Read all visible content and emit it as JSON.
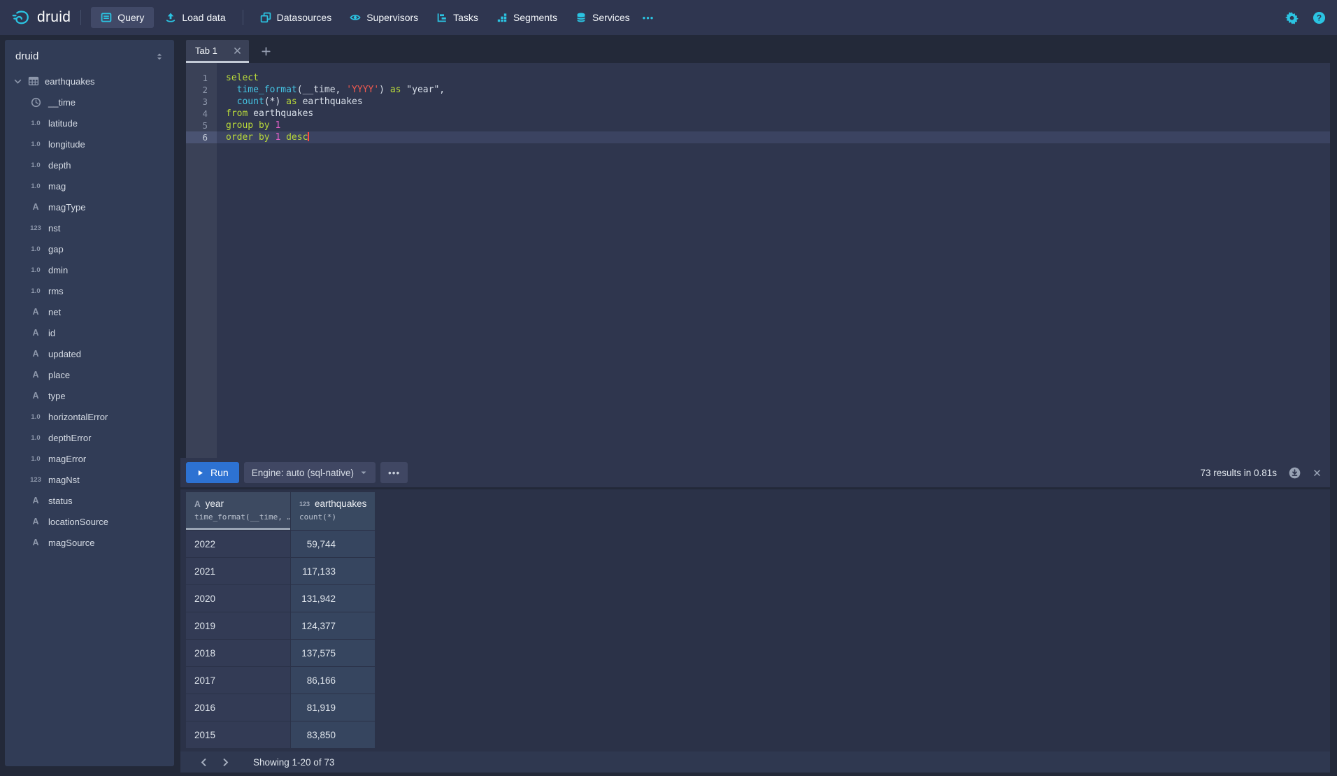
{
  "colors": {
    "accent_cyan": "#2bc4e2",
    "run_blue": "#2d72d2",
    "keyword": "#b9d93a",
    "function": "#45c5e4",
    "string": "#f0594f",
    "number": "#e561c9"
  },
  "navbar": {
    "logo_text": "druid",
    "items": [
      {
        "label": "Query",
        "icon": "query-icon",
        "active": true,
        "group": 1
      },
      {
        "label": "Load data",
        "icon": "upload-icon",
        "active": false,
        "group": 1
      },
      {
        "label": "Datasources",
        "icon": "datasources-icon",
        "active": false,
        "group": 2
      },
      {
        "label": "Supervisors",
        "icon": "supervisors-icon",
        "active": false,
        "group": 2
      },
      {
        "label": "Tasks",
        "icon": "tasks-icon",
        "active": false,
        "group": 2
      },
      {
        "label": "Segments",
        "icon": "segments-icon",
        "active": false,
        "group": 2
      },
      {
        "label": "Services",
        "icon": "services-icon",
        "active": false,
        "group": 2
      }
    ],
    "more_label": "•••"
  },
  "sidebar": {
    "schema": "druid",
    "table_name": "earthquakes",
    "columns": [
      {
        "name": "__time",
        "type": "time"
      },
      {
        "name": "latitude",
        "type": "float"
      },
      {
        "name": "longitude",
        "type": "float"
      },
      {
        "name": "depth",
        "type": "float"
      },
      {
        "name": "mag",
        "type": "float"
      },
      {
        "name": "magType",
        "type": "str"
      },
      {
        "name": "nst",
        "type": "int"
      },
      {
        "name": "gap",
        "type": "float"
      },
      {
        "name": "dmin",
        "type": "float"
      },
      {
        "name": "rms",
        "type": "float"
      },
      {
        "name": "net",
        "type": "str"
      },
      {
        "name": "id",
        "type": "str"
      },
      {
        "name": "updated",
        "type": "str"
      },
      {
        "name": "place",
        "type": "str"
      },
      {
        "name": "type",
        "type": "str"
      },
      {
        "name": "horizontalError",
        "type": "float"
      },
      {
        "name": "depthError",
        "type": "float"
      },
      {
        "name": "magError",
        "type": "float"
      },
      {
        "name": "magNst",
        "type": "int"
      },
      {
        "name": "status",
        "type": "str"
      },
      {
        "name": "locationSource",
        "type": "str"
      },
      {
        "name": "magSource",
        "type": "str"
      }
    ],
    "type_badges": {
      "float": "1.0",
      "str": "A",
      "int": "123"
    }
  },
  "editor": {
    "tab_label": "Tab 1",
    "active_line": 6,
    "code_lines": [
      [
        {
          "t": "kw",
          "v": "select"
        }
      ],
      [
        {
          "t": "pl",
          "v": "  "
        },
        {
          "t": "fn",
          "v": "time_format"
        },
        {
          "t": "pl",
          "v": "(__time, "
        },
        {
          "t": "str",
          "v": "'YYYY'"
        },
        {
          "t": "pl",
          "v": ") "
        },
        {
          "t": "kw",
          "v": "as"
        },
        {
          "t": "pl",
          "v": " \"year\","
        }
      ],
      [
        {
          "t": "pl",
          "v": "  "
        },
        {
          "t": "fn",
          "v": "count"
        },
        {
          "t": "pl",
          "v": "(*) "
        },
        {
          "t": "kw",
          "v": "as"
        },
        {
          "t": "pl",
          "v": " earthquakes"
        }
      ],
      [
        {
          "t": "kw",
          "v": "from"
        },
        {
          "t": "pl",
          "v": " earthquakes"
        }
      ],
      [
        {
          "t": "kw",
          "v": "group by"
        },
        {
          "t": "pl",
          "v": " "
        },
        {
          "t": "num",
          "v": "1"
        }
      ],
      [
        {
          "t": "kw",
          "v": "order by"
        },
        {
          "t": "pl",
          "v": " "
        },
        {
          "t": "num",
          "v": "1"
        },
        {
          "t": "pl",
          "v": " "
        },
        {
          "t": "kw",
          "v": "desc"
        }
      ]
    ]
  },
  "runbar": {
    "run_label": "Run",
    "engine_label": "Engine: auto (sql-native)",
    "more_label": "•••",
    "results_text": "73 results in 0.81s"
  },
  "results": {
    "columns": [
      {
        "name": "year",
        "type_badge": "A",
        "type": "str",
        "expr": "time_format(__time, …",
        "sorted": true
      },
      {
        "name": "earthquakes",
        "type_badge": "123",
        "type": "int",
        "expr": "count(*)",
        "sorted": false
      }
    ],
    "rows": [
      {
        "year": "2022",
        "earthquakes": "59,744"
      },
      {
        "year": "2021",
        "earthquakes": "117,133"
      },
      {
        "year": "2020",
        "earthquakes": "131,942"
      },
      {
        "year": "2019",
        "earthquakes": "124,377"
      },
      {
        "year": "2018",
        "earthquakes": "137,575"
      },
      {
        "year": "2017",
        "earthquakes": "86,166"
      },
      {
        "year": "2016",
        "earthquakes": "81,919"
      },
      {
        "year": "2015",
        "earthquakes": "83,850"
      }
    ]
  },
  "pagination": {
    "label": "Showing 1-20 of 73"
  }
}
